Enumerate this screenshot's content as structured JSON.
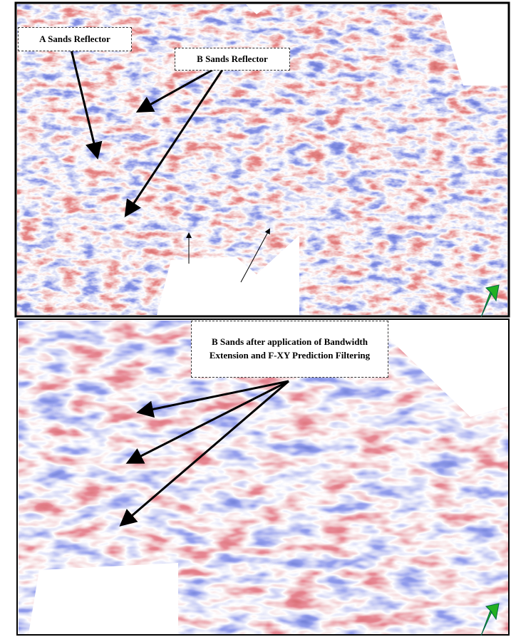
{
  "panels": [
    {
      "labels": [
        "A Sands Reflector",
        "B Sands Reflector"
      ]
    },
    {
      "labels": [
        "B Sands after application of Bandwidth Extension and F-XY Prediction Filtering"
      ]
    }
  ]
}
